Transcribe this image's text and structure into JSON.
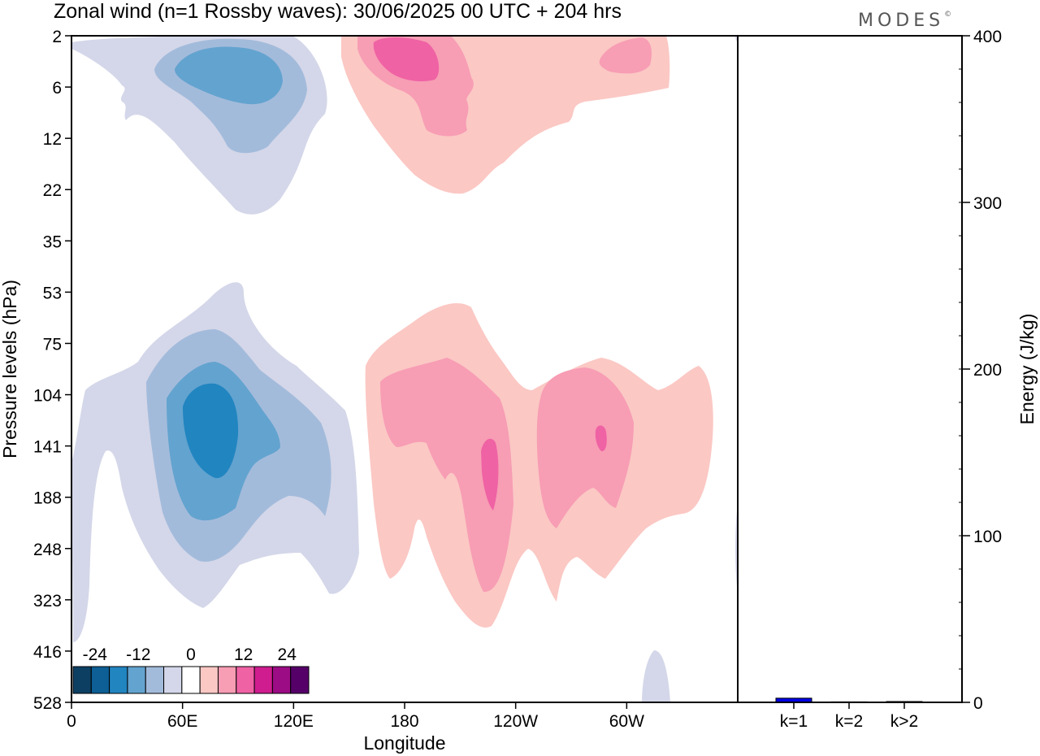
{
  "title": "Zonal wind (n=1 Rossby waves):  30/06/2025  00 UTC  + 204 hrs",
  "brand": "MODES",
  "brand_mark": "©",
  "colors": {
    "scale": [
      "#0d3f63",
      "#0d5f95",
      "#2185c0",
      "#63a3cf",
      "#a3bbdb",
      "#d4d7e9",
      "#ffffff",
      "#fbc8c4",
      "#f79db4",
      "#ef62a4",
      "#cf1d8f",
      "#9c0c84",
      "#550068"
    ],
    "energy_bar": "#0000e6"
  },
  "chart_data": [
    {
      "type": "heatmap",
      "title": "Zonal wind (n=1 Rossby waves):  30/06/2025  00 UTC  + 204 hrs",
      "xlabel": "Longitude",
      "ylabel": "Pressure levels (hPa)",
      "x_ticks": [
        "0",
        "60E",
        "120E",
        "180",
        "120W",
        "60W"
      ],
      "x_tick_values": [
        0,
        60,
        120,
        180,
        240,
        300
      ],
      "xlim": [
        0,
        360
      ],
      "y_ticks": [
        "2",
        "6",
        "12",
        "22",
        "35",
        "53",
        "75",
        "104",
        "141",
        "188",
        "248",
        "323",
        "416",
        "528"
      ],
      "colorbar": {
        "labels": [
          "-24",
          "-12",
          "0",
          "12",
          "24"
        ],
        "label_values": [
          -24,
          -12,
          0,
          12,
          24
        ],
        "levels": [
          -30,
          -25,
          -20,
          -15,
          -10,
          -5,
          -2,
          2,
          5,
          10,
          15,
          20,
          25,
          30
        ]
      },
      "features": [
        {
          "sign": "negative",
          "lon": [
            60,
            140
          ],
          "level": [
            2,
            35
          ],
          "peak_lon": 90,
          "peak_level": 6,
          "peak_value": -10
        },
        {
          "sign": "positive",
          "lon": [
            150,
            320
          ],
          "level": [
            2,
            22
          ],
          "peak_lon": 190,
          "peak_level": 4,
          "peak_value": 12
        },
        {
          "sign": "negative",
          "lon": [
            0,
            155
          ],
          "level": [
            53,
            323
          ],
          "peak_lon": 75,
          "peak_level": 141,
          "peak_value": -15
        },
        {
          "sign": "positive",
          "lon": [
            160,
            345
          ],
          "level": [
            53,
            416
          ],
          "peak_lon": 225,
          "peak_level": 188,
          "peak_value": 12
        }
      ]
    },
    {
      "type": "bar",
      "categories": [
        "k=1",
        "k=2",
        "k>2"
      ],
      "values": [
        2.5,
        0.3,
        0.5
      ],
      "ylabel": "Energy (J/kg)",
      "ylim": [
        0,
        400
      ],
      "y_ticks": [
        "0",
        "100",
        "200",
        "300",
        "400"
      ]
    }
  ]
}
